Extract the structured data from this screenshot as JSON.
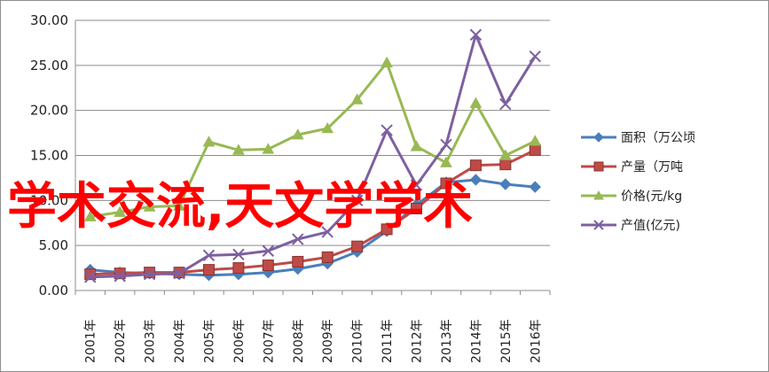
{
  "chart_data": {
    "type": "line",
    "categories": [
      "2001年",
      "2002年",
      "2003年",
      "2004年",
      "2005年",
      "2006年",
      "2007年",
      "2008年",
      "2009年",
      "2010年",
      "2011年",
      "2012年",
      "2013年",
      "2014年",
      "2015年",
      "2016年"
    ],
    "ylim": [
      0,
      30
    ],
    "yticks": [
      "0.00",
      "5.00",
      "10.00",
      "15.00",
      "20.00",
      "25.00",
      "30.00"
    ],
    "grid": true,
    "legend_position": "right",
    "series": [
      {
        "name": "面积（万公顷",
        "color": "#4a7ebb",
        "marker": "diamond",
        "values": [
          2.3,
          2.0,
          1.9,
          1.8,
          1.7,
          1.8,
          2.0,
          2.4,
          3.0,
          4.3,
          6.6,
          9.5,
          12.0,
          12.3,
          11.8,
          11.5
        ]
      },
      {
        "name": "产量（万吨",
        "color": "#be4b48",
        "marker": "square",
        "values": [
          1.8,
          1.9,
          2.0,
          2.0,
          2.3,
          2.5,
          2.8,
          3.2,
          3.7,
          4.9,
          6.8,
          9.1,
          11.9,
          13.9,
          14.0,
          15.6
        ]
      },
      {
        "name": "价格(元/kg",
        "color": "#98b954",
        "marker": "triangle",
        "values": [
          8.2,
          8.7,
          9.3,
          9.4,
          16.5,
          15.6,
          15.7,
          17.3,
          18.0,
          21.2,
          25.3,
          16.0,
          14.2,
          20.8,
          15.0,
          16.6
        ]
      },
      {
        "name": "产值(亿元)",
        "color": "#7d60a0",
        "marker": "x",
        "values": [
          1.5,
          1.6,
          1.8,
          1.9,
          3.9,
          4.0,
          4.4,
          5.7,
          6.5,
          10.0,
          17.8,
          11.7,
          16.2,
          28.4,
          20.7,
          26.0
        ]
      }
    ]
  },
  "overlay_text": "学术交流,天文学学术"
}
